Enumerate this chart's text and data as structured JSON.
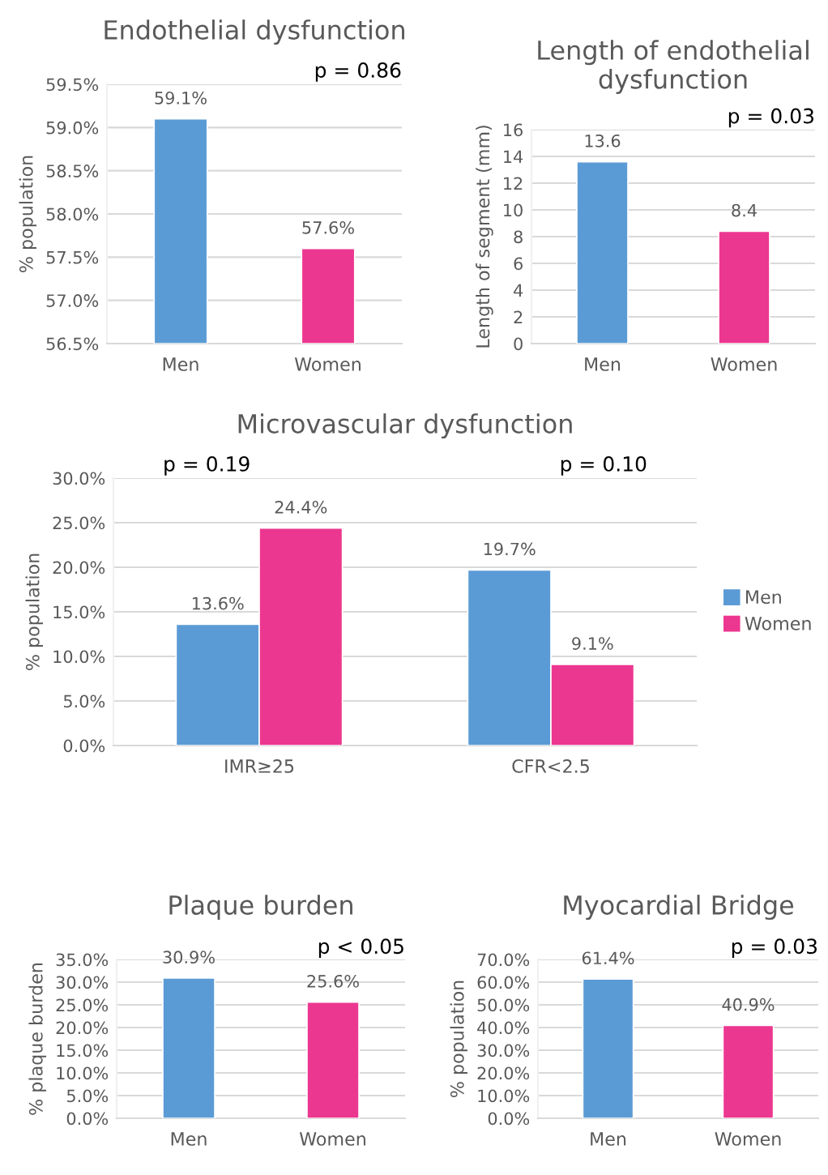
{
  "chart_data": [
    {
      "type": "bar",
      "title": "Endothelial dysfunction",
      "ylabel": "% population",
      "categories": [
        "Men",
        "Women"
      ],
      "values": [
        59.1,
        57.6
      ],
      "colors": [
        "#5b9bd5",
        "#ec3790"
      ],
      "value_labels": [
        "59.1%",
        "57.6%"
      ],
      "ylim": [
        56.5,
        59.5
      ],
      "yticks": [
        {
          "value": 56.5,
          "label": "56.5%"
        },
        {
          "value": 57.0,
          "label": "57.0%"
        },
        {
          "value": 57.5,
          "label": "57.5%"
        },
        {
          "value": 58.0,
          "label": "58.0%"
        },
        {
          "value": 58.5,
          "label": "58.5%"
        },
        {
          "value": 59.0,
          "label": "59.0%"
        },
        {
          "value": 59.5,
          "label": "59.5%"
        }
      ],
      "grid": "y",
      "annotations": [
        "p = 0.86"
      ]
    },
    {
      "type": "bar",
      "title": "Length of endothelial dysfunction",
      "ylabel": "Length of segment (mm)",
      "categories": [
        "Men",
        "Women"
      ],
      "values": [
        13.6,
        8.4
      ],
      "colors": [
        "#5b9bd5",
        "#ec3790"
      ],
      "data_labels": true,
      "ylim": [
        0,
        16
      ],
      "yticks": [
        0,
        2,
        4,
        6,
        8,
        10,
        12,
        14,
        16
      ],
      "grid": "y",
      "annotations": [
        "p = 0.03"
      ]
    },
    {
      "type": "bar",
      "title": "Microvascular dysfunction",
      "ylabel": "% population",
      "categories": [
        "IMR≥25",
        "CFR<2.5"
      ],
      "series": [
        {
          "name": "Men",
          "color": "#5b9bd5",
          "values": [
            13.6,
            19.7
          ],
          "value_labels": [
            "13.6%",
            "19.7%"
          ]
        },
        {
          "name": "Women",
          "color": "#ec3790",
          "values": [
            24.4,
            9.1
          ],
          "value_labels": [
            "24.4%",
            "9.1%"
          ]
        }
      ],
      "ylim": [
        0,
        30
      ],
      "yticks": [
        {
          "value": 0,
          "label": "0.0%"
        },
        {
          "value": 5,
          "label": "5.0%"
        },
        {
          "value": 10,
          "label": "10.0%"
        },
        {
          "value": 15,
          "label": "15.0%"
        },
        {
          "value": 20,
          "label": "20.0%"
        },
        {
          "value": 25,
          "label": "25.0%"
        },
        {
          "value": 30,
          "label": "30.0%"
        }
      ],
      "grid": "y",
      "legend": "right",
      "annotations": [
        "p = 0.19",
        "p = 0.10"
      ]
    },
    {
      "type": "bar",
      "title": "Plaque burden",
      "ylabel": "% plaque burden",
      "categories": [
        "Men",
        "Women"
      ],
      "values": [
        30.9,
        25.6
      ],
      "colors": [
        "#5b9bd5",
        "#ec3790"
      ],
      "value_labels": [
        "30.9%",
        "25.6%"
      ],
      "ylim": [
        0,
        35
      ],
      "yticks": [
        {
          "value": 0,
          "label": "0.0%"
        },
        {
          "value": 5,
          "label": "5.0%"
        },
        {
          "value": 10,
          "label": "10.0%"
        },
        {
          "value": 15,
          "label": "15.0%"
        },
        {
          "value": 20,
          "label": "20.0%"
        },
        {
          "value": 25,
          "label": "25.0%"
        },
        {
          "value": 30,
          "label": "30.0%"
        },
        {
          "value": 35,
          "label": "35.0%"
        }
      ],
      "grid": "y",
      "annotations": [
        "p < 0.05"
      ]
    },
    {
      "type": "bar",
      "title": "Myocardial Bridge",
      "ylabel": "% population",
      "categories": [
        "Men",
        "Women"
      ],
      "values": [
        61.4,
        40.9
      ],
      "colors": [
        "#5b9bd5",
        "#ec3790"
      ],
      "value_labels": [
        "61.4%",
        "40.9%"
      ],
      "ylim": [
        0,
        70
      ],
      "yticks": [
        {
          "value": 0,
          "label": "0.0%"
        },
        {
          "value": 10,
          "label": "10.0%"
        },
        {
          "value": 20,
          "label": "20.0%"
        },
        {
          "value": 30,
          "label": "30.0%"
        },
        {
          "value": 40,
          "label": "40.0%"
        },
        {
          "value": 50,
          "label": "50.0%"
        },
        {
          "value": 60,
          "label": "60.0%"
        },
        {
          "value": 70,
          "label": "70.0%"
        }
      ],
      "grid": "y",
      "annotations": [
        "p = 0.03"
      ]
    }
  ]
}
